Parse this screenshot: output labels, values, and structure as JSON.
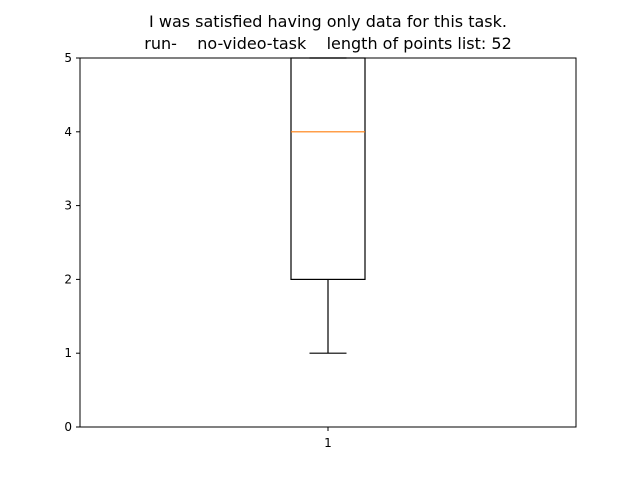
{
  "chart_data": {
    "type": "box",
    "title_line1": "I was satisfied having only data for this task.",
    "title_line2": "run-    no-video-task    length of points list: 52",
    "categories": [
      "1"
    ],
    "ylim": [
      0,
      5
    ],
    "yticks": [
      "0",
      "1",
      "2",
      "3",
      "4",
      "5"
    ],
    "boxes": [
      {
        "category": "1",
        "whisker_low": 1,
        "q1": 2,
        "median": 4,
        "q3": 5,
        "whisker_high": 5
      }
    ],
    "grid": false,
    "colors": {
      "box": "#000000",
      "median": "#ff7f0e"
    }
  }
}
